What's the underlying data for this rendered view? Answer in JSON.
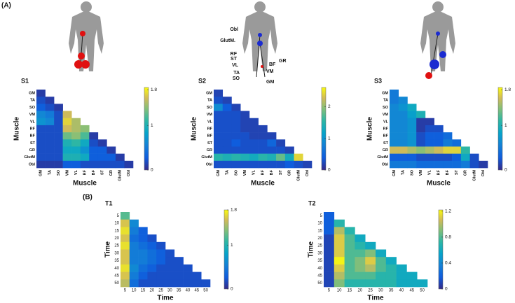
{
  "panel_labels": [
    "(A)",
    "(B)"
  ],
  "figure_labels": [
    "Obl",
    "GlutM.",
    "RF",
    "ST",
    "VL",
    "TA",
    "SO",
    "GR",
    "BF",
    "VM",
    "GM"
  ],
  "chart_data": [
    {
      "type": "heatmap",
      "title": "S1",
      "xlabel": "Muscle",
      "ylabel": "Muscle",
      "x": [
        "GM",
        "TA",
        "SO",
        "VM",
        "VL",
        "RF",
        "BF",
        "ST",
        "GR",
        "GlutM",
        "Obl"
      ],
      "y": [
        "GM",
        "TA",
        "SO",
        "VM",
        "VL",
        "RF",
        "BF",
        "ST",
        "GR",
        "GlutM",
        "Obl"
      ],
      "values": [
        [
          0.1
        ],
        [
          0.2,
          0.1
        ],
        [
          0.3,
          0.2,
          0.1
        ],
        [
          0.6,
          0.5,
          0.2,
          1.6
        ],
        [
          0.7,
          0.6,
          0.2,
          1.7,
          1.5
        ],
        [
          0.2,
          0.2,
          0.2,
          1.6,
          1.5,
          1.4
        ],
        [
          0.2,
          0.2,
          0.2,
          1.3,
          1.4,
          1.2,
          0.1
        ],
        [
          0.2,
          0.2,
          0.2,
          1.0,
          1.1,
          0.9,
          0.2,
          0.1
        ],
        [
          0.2,
          0.2,
          0.2,
          0.9,
          0.9,
          0.7,
          0.3,
          0.3,
          0.1
        ],
        [
          0.2,
          0.2,
          0.2,
          1.0,
          1.0,
          0.9,
          0.3,
          0.3,
          0.3,
          0.1
        ],
        [
          0.1,
          0.1,
          0.1,
          0.3,
          0.3,
          0.2,
          0.2,
          0.2,
          0.2,
          0.2,
          0.1
        ]
      ],
      "clim": [
        0,
        1.85
      ],
      "cticks": [
        0,
        1,
        1.8
      ]
    },
    {
      "type": "heatmap",
      "title": "S2",
      "xlabel": "Muscle",
      "ylabel": "Muscle",
      "x": [
        "GM",
        "TA",
        "SO",
        "VM",
        "VL",
        "RF",
        "BF",
        "ST",
        "GR",
        "GlutM",
        "Obl"
      ],
      "y": [
        "GM",
        "TA",
        "SO",
        "VM",
        "VL",
        "RF",
        "BF",
        "ST",
        "GR",
        "GlutM",
        "Obl"
      ],
      "values": [
        [
          0.2
        ],
        [
          0.3,
          0.2
        ],
        [
          0.9,
          0.4,
          0.2
        ],
        [
          0.3,
          0.3,
          0.3,
          0.2
        ],
        [
          0.3,
          0.3,
          0.3,
          0.2,
          0.2
        ],
        [
          0.3,
          0.3,
          0.3,
          0.2,
          0.2,
          0.2
        ],
        [
          0.3,
          0.3,
          0.3,
          0.3,
          0.2,
          0.2,
          0.2
        ],
        [
          0.3,
          0.3,
          0.4,
          0.3,
          0.3,
          0.3,
          0.5,
          0.2
        ],
        [
          0.3,
          0.3,
          0.3,
          0.3,
          0.3,
          0.3,
          0.3,
          0.3,
          0.2
        ],
        [
          1.5,
          1.4,
          1.5,
          1.4,
          1.3,
          1.5,
          1.4,
          1.8,
          1.3,
          2.4
        ],
        [
          0.3,
          0.3,
          0.3,
          0.3,
          0.3,
          0.3,
          0.3,
          0.3,
          0.4,
          0.3,
          0.2
        ]
      ],
      "clim": [
        0,
        2.6
      ],
      "cticks": [
        0,
        1,
        2
      ]
    },
    {
      "type": "heatmap",
      "title": "S3",
      "xlabel": "Muscle",
      "ylabel": "Muscle",
      "x": [
        "GM",
        "TA",
        "SO",
        "VM",
        "VL",
        "RF",
        "BF",
        "ST",
        "GR",
        "GlutM",
        "Obl"
      ],
      "y": [
        "GM",
        "TA",
        "SO",
        "VM",
        "VL",
        "RF",
        "BF",
        "ST",
        "GR",
        "GlutM",
        "Obl"
      ],
      "values": [
        [
          0.5
        ],
        [
          0.5,
          0.6
        ],
        [
          0.6,
          0.7,
          0.9
        ],
        [
          0.6,
          0.6,
          0.8,
          1.0
        ],
        [
          0.6,
          0.6,
          0.7,
          0.1,
          0.1
        ],
        [
          0.6,
          0.6,
          0.7,
          0.1,
          0.2,
          0.2
        ],
        [
          0.6,
          0.6,
          0.7,
          0.2,
          0.3,
          0.3,
          0.4
        ],
        [
          0.6,
          0.6,
          0.7,
          0.2,
          0.3,
          0.3,
          0.5,
          0.4
        ],
        [
          1.6,
          1.6,
          1.5,
          1.4,
          1.5,
          1.6,
          1.7,
          1.7,
          1.1
        ],
        [
          0.3,
          0.3,
          0.3,
          0.2,
          0.2,
          0.2,
          0.2,
          0.3,
          0.9,
          0.2
        ],
        [
          0.5,
          0.5,
          0.5,
          0.4,
          0.4,
          0.4,
          0.4,
          0.4,
          0.5,
          0.2,
          0.1
        ]
      ],
      "clim": [
        0,
        1.85
      ],
      "cticks": [
        0,
        1,
        1.8
      ]
    },
    {
      "type": "heatmap",
      "title": "T1",
      "xlabel": "Time",
      "ylabel": "Time",
      "x": [
        5,
        10,
        15,
        20,
        25,
        30,
        35,
        40,
        45,
        50
      ],
      "y": [
        5,
        10,
        15,
        20,
        25,
        30,
        35,
        40,
        45,
        50
      ],
      "values": [
        [
          1.2
        ],
        [
          1.6,
          0.6
        ],
        [
          1.7,
          0.5,
          0.3
        ],
        [
          1.6,
          0.4,
          0.3,
          0.2
        ],
        [
          1.7,
          0.5,
          0.4,
          0.3,
          0.2
        ],
        [
          1.6,
          0.5,
          0.5,
          0.4,
          0.3,
          0.2
        ],
        [
          1.6,
          0.5,
          0.5,
          0.4,
          0.3,
          0.2,
          0.2
        ],
        [
          1.7,
          0.6,
          0.4,
          0.3,
          0.2,
          0.2,
          0.2,
          0.2
        ],
        [
          1.6,
          0.5,
          0.3,
          0.2,
          0.2,
          0.2,
          0.2,
          0.2,
          0.2
        ],
        [
          1.5,
          0.4,
          0.2,
          0.2,
          0.2,
          0.2,
          0.2,
          0.2,
          0.2,
          0.2
        ]
      ],
      "clim": [
        0,
        1.8
      ],
      "cticks": [
        0,
        1,
        1.8
      ]
    },
    {
      "type": "heatmap",
      "title": "T2",
      "xlabel": "Time",
      "ylabel": "Time",
      "x": [
        5,
        10,
        15,
        20,
        25,
        30,
        35,
        40,
        45,
        50
      ],
      "y": [
        5,
        10,
        15,
        20,
        25,
        30,
        35,
        40,
        45,
        50
      ],
      "values": [
        [
          0.2
        ],
        [
          0.2,
          0.7
        ],
        [
          0.2,
          1.0,
          0.7
        ],
        [
          0.1,
          1.1,
          0.8,
          0.6
        ],
        [
          0.1,
          1.1,
          0.8,
          0.7,
          0.6
        ],
        [
          0.1,
          1.1,
          0.8,
          0.8,
          0.9,
          0.6
        ],
        [
          0.1,
          1.2,
          0.8,
          0.9,
          1.1,
          0.8,
          0.6
        ],
        [
          0.1,
          1.1,
          0.8,
          0.9,
          1.0,
          0.8,
          0.7,
          0.6
        ],
        [
          0.1,
          1.0,
          0.8,
          0.8,
          0.8,
          0.7,
          0.7,
          0.6,
          0.6
        ],
        [
          0.1,
          0.9,
          0.7,
          0.7,
          0.7,
          0.7,
          0.7,
          0.6,
          0.6,
          0.6
        ]
      ],
      "clim": [
        0,
        1.22
      ],
      "cticks": [
        0,
        0.4,
        0.8,
        1.2
      ]
    }
  ]
}
